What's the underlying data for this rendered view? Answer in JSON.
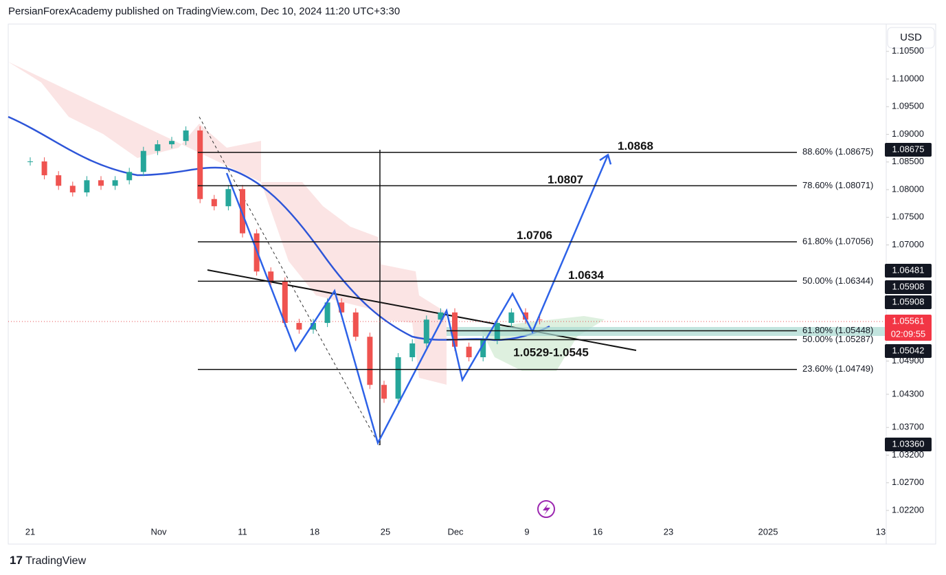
{
  "header": {
    "text": "PersianForexAcademy published on TradingView.com, Dec 10, 2024 11:20 UTC+3:30"
  },
  "currency_button": "USD",
  "footer": {
    "brand": "TradingView"
  },
  "price_axis": {
    "range": [
      1.01989,
      1.10994
    ],
    "ticks": [
      {
        "value": 1.105,
        "label": "1.10500"
      },
      {
        "value": 1.1,
        "label": "1.10000"
      },
      {
        "value": 1.095,
        "label": "1.09500"
      },
      {
        "value": 1.09,
        "label": "1.09000"
      },
      {
        "value": 1.085,
        "label": "1.08500"
      },
      {
        "value": 1.08,
        "label": "1.08000"
      },
      {
        "value": 1.075,
        "label": "1.07500"
      },
      {
        "value": 1.07,
        "label": "1.07000"
      },
      {
        "value": 1.049,
        "label": "1.04900"
      },
      {
        "value": 1.043,
        "label": "1.04300"
      },
      {
        "value": 1.037,
        "label": "1.03700"
      },
      {
        "value": 1.032,
        "label": "1.03200"
      },
      {
        "value": 1.027,
        "label": "1.02700"
      },
      {
        "value": 1.022,
        "label": "1.02200"
      }
    ]
  },
  "time_axis": {
    "labels": [
      "21",
      "Nov",
      "11",
      "18",
      "25",
      "Dec",
      "9",
      "16",
      "23",
      "2025",
      "13"
    ]
  },
  "closes": [
    1.0851,
    1.0826,
    1.0807,
    1.0795,
    1.0817,
    1.0807,
    1.0817,
    1.0832,
    1.087,
    1.0882,
    1.0888,
    1.0907,
    1.0783,
    1.077,
    1.0801,
    1.0721,
    1.0652,
    1.0634,
    1.0559,
    1.0547,
    1.0559,
    1.0596,
    1.0578,
    1.0534,
    1.0447,
    1.0422,
    1.0497,
    1.0522,
    1.0565,
    1.0578,
    1.0516,
    1.0497,
    1.0528,
    1.0559,
    1.0578,
    1.0565,
    1.0564
  ],
  "pattern": [
    1.083,
    1.0509,
    1.0617,
    1.0342,
    1.0581,
    1.0456,
    1.0612,
    1.0543,
    1.0863
  ],
  "fib_levels": [
    {
      "value": 1.08675,
      "label": "88.60% (1.08675)"
    },
    {
      "value": 1.08071,
      "label": "78.60% (1.08071)"
    },
    {
      "value": 1.07056,
      "label": "61.80% (1.07056)"
    },
    {
      "value": 1.06344,
      "label": "50.00% (1.06344)"
    },
    {
      "value": 1.05448,
      "label": "61.80% (1.05448)"
    },
    {
      "value": 1.05287,
      "label": "50.00% (1.05287)"
    },
    {
      "value": 1.04749,
      "label": "23.60% (1.04749)"
    }
  ],
  "targets": [
    {
      "value": 1.0868,
      "label": "1.0868"
    },
    {
      "value": 1.0807,
      "label": "1.0807"
    },
    {
      "value": 1.0706,
      "label": "1.0706"
    },
    {
      "value": 1.0634,
      "label": "1.0634"
    }
  ],
  "zone_label": "1.0529-1.0545",
  "badges": [
    {
      "value": 1.08675,
      "label": "1.08675"
    },
    {
      "value": 1.06481,
      "label": "1.06481"
    },
    {
      "value": 1.05908,
      "label": "1.05908"
    },
    {
      "value": 1.05908,
      "label": "1.05908"
    },
    {
      "value": 1.05561,
      "label": "1.05561"
    },
    {
      "value": 1.05042,
      "label": "1.05042"
    },
    {
      "value": 1.0336,
      "label": "1.03360"
    }
  ],
  "countdown": "02:09:55"
}
